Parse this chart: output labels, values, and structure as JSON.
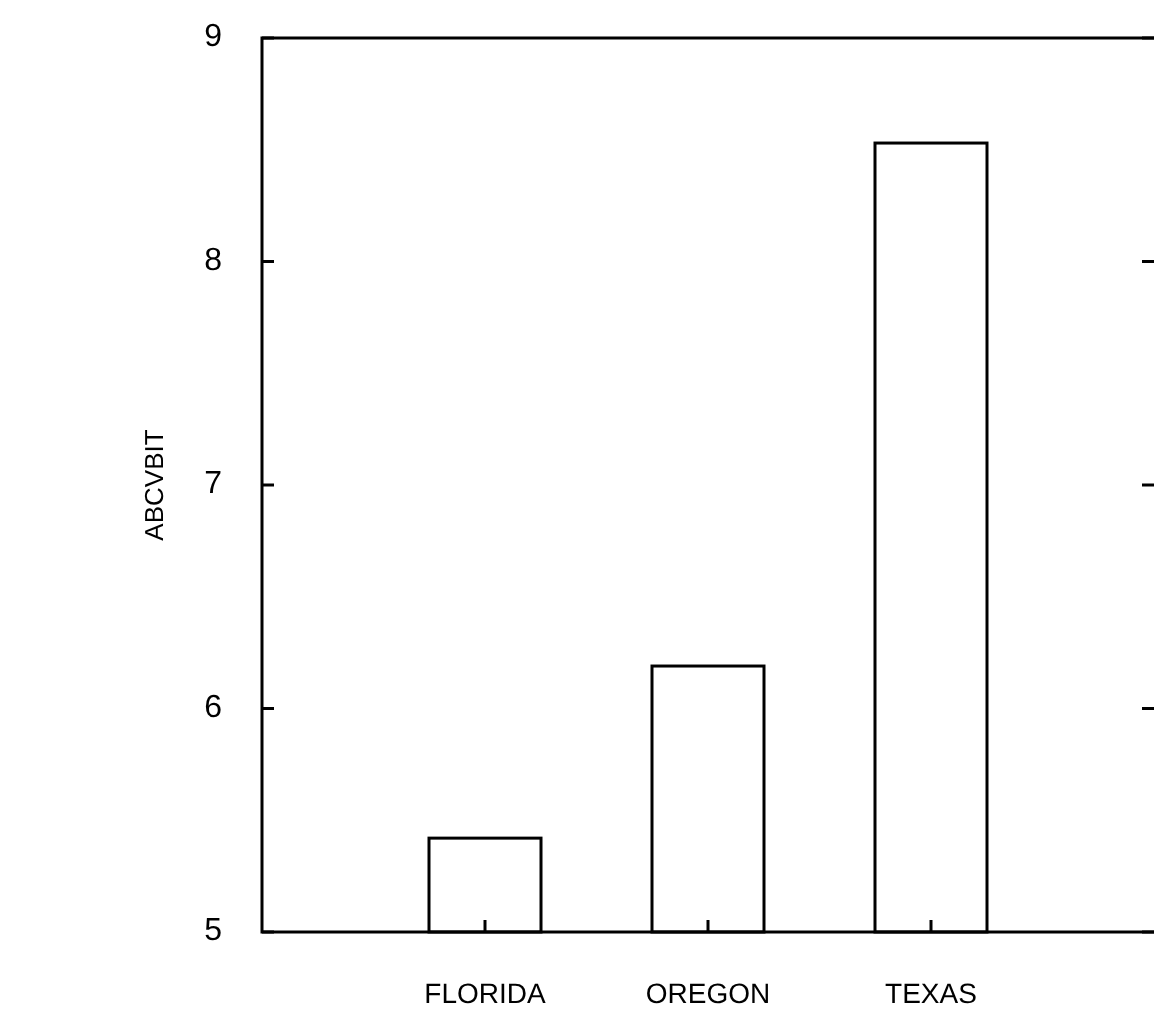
{
  "chart_data": {
    "type": "bar",
    "ylabel": "ABCVBIT",
    "categories": [
      "FLORIDA",
      "OREGON",
      "TEXAS"
    ],
    "values": [
      5.42,
      6.19,
      8.53
    ],
    "color": "#ffffff",
    "ylim": [
      5,
      9
    ],
    "yticks": [
      5,
      6,
      7,
      8,
      9
    ],
    "grid": false
  }
}
